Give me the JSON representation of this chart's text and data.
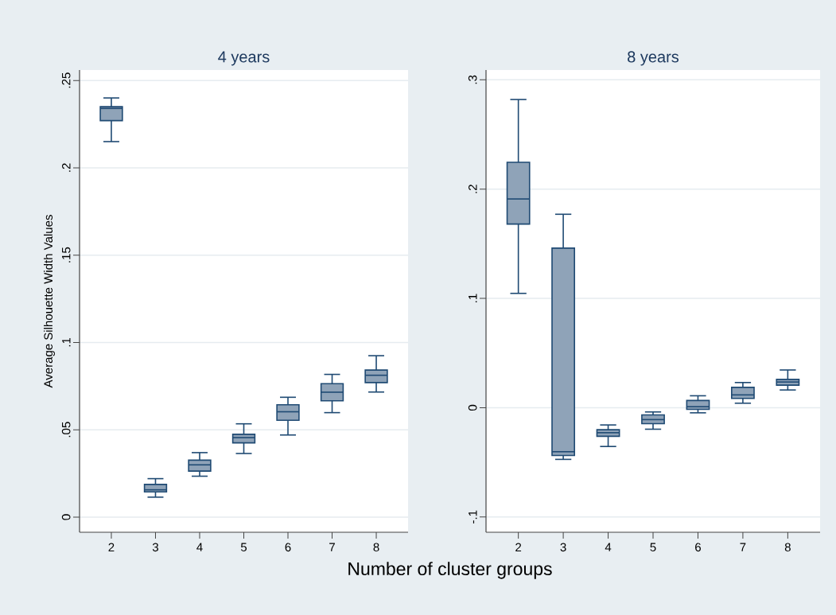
{
  "chart_data": [
    {
      "type": "box",
      "title": "4 years",
      "ylabel": "Average Silhouette Width Values",
      "xlabel": "Number of cluster groups",
      "color": "#8fa3b8",
      "grid": "y",
      "categories": [
        "2",
        "3",
        "4",
        "5",
        "6",
        "7",
        "8"
      ],
      "ylim": [
        -0.0087,
        0.256
      ],
      "yticks": [
        0,
        {
          "value": 0.05,
          "label": ".05"
        },
        {
          "value": 0.1,
          "label": ".1"
        },
        {
          "value": 0.15,
          "label": ".15"
        },
        {
          "value": 0.2,
          "label": ".2"
        },
        {
          "value": 0.25,
          "label": ".25"
        }
      ],
      "boxes": [
        {
          "low": 0.215,
          "q1": 0.227,
          "median": 0.234,
          "q3": 0.235,
          "high": 0.24
        },
        {
          "low": 0.0114,
          "q1": 0.0144,
          "median": 0.0156,
          "q3": 0.0187,
          "high": 0.022
        },
        {
          "low": 0.0234,
          "q1": 0.0263,
          "median": 0.0299,
          "q3": 0.0326,
          "high": 0.0369
        },
        {
          "low": 0.0364,
          "q1": 0.0425,
          "median": 0.0455,
          "q3": 0.0474,
          "high": 0.0534
        },
        {
          "low": 0.047,
          "q1": 0.0554,
          "median": 0.0603,
          "q3": 0.0643,
          "high": 0.0686
        },
        {
          "low": 0.0598,
          "q1": 0.0666,
          "median": 0.0715,
          "q3": 0.0764,
          "high": 0.0817
        },
        {
          "low": 0.0716,
          "q1": 0.077,
          "median": 0.0812,
          "q3": 0.0842,
          "high": 0.0924
        }
      ]
    },
    {
      "type": "box",
      "title": "8 years",
      "color": "#8fa3b8",
      "grid": "y",
      "categories": [
        "2",
        "3",
        "4",
        "5",
        "6",
        "7",
        "8"
      ],
      "ylim": [
        -0.114,
        0.309
      ],
      "yticks": [
        {
          "value": -0.1,
          "label": "-.1"
        },
        0,
        {
          "value": 0.1,
          "label": ".1"
        },
        {
          "value": 0.2,
          "label": ".2"
        },
        {
          "value": 0.3,
          "label": ".3"
        }
      ],
      "boxes": [
        {
          "low": 0.1046,
          "q1": 0.168,
          "median": 0.191,
          "q3": 0.2245,
          "high": 0.282
        },
        {
          "low": -0.0473,
          "q1": -0.0437,
          "median": -0.0403,
          "q3": 0.146,
          "high": 0.177
        },
        {
          "low": -0.0355,
          "q1": -0.0262,
          "median": -0.0229,
          "q3": -0.0202,
          "high": -0.0158
        },
        {
          "low": -0.0197,
          "q1": -0.0146,
          "median": -0.0109,
          "q3": -0.0066,
          "high": -0.0039
        },
        {
          "low": -0.0047,
          "q1": -0.0015,
          "median": 0.0009,
          "q3": 0.0066,
          "high": 0.0109
        },
        {
          "low": 0.0041,
          "q1": 0.0085,
          "median": 0.0117,
          "q3": 0.0186,
          "high": 0.023
        },
        {
          "low": 0.0162,
          "q1": 0.0206,
          "median": 0.0235,
          "q3": 0.0259,
          "high": 0.0345
        }
      ]
    }
  ]
}
